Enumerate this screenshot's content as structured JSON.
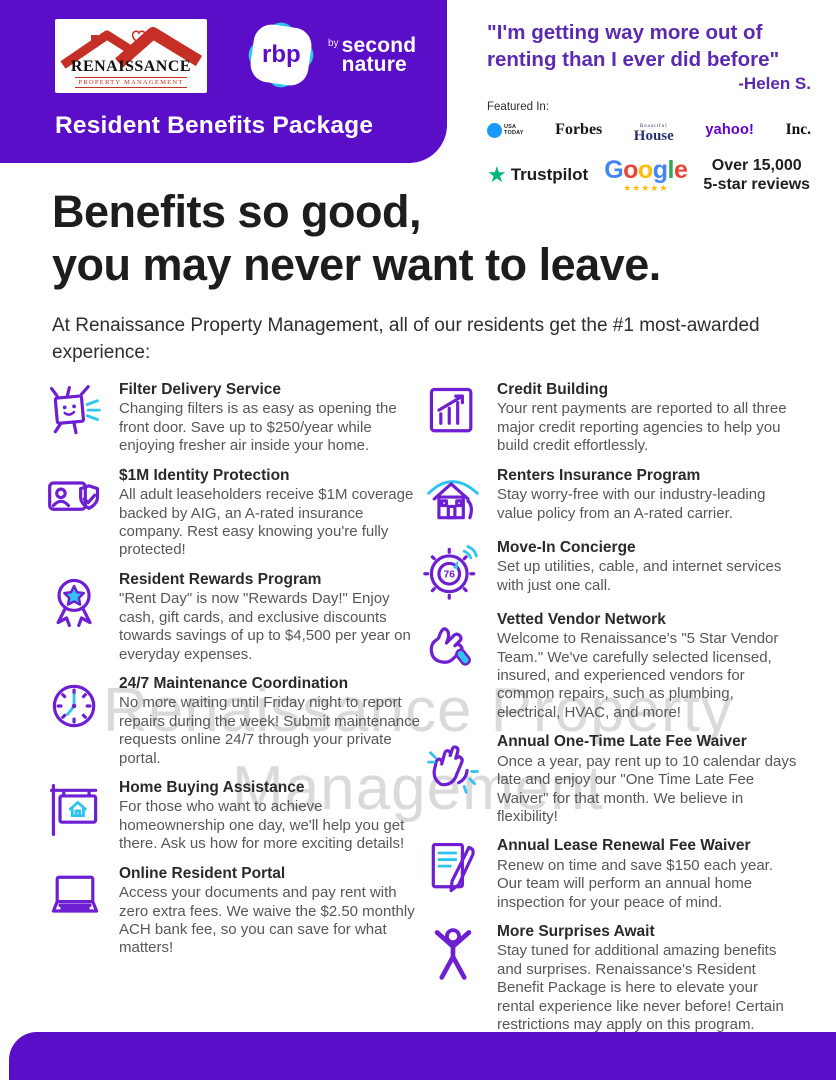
{
  "colors": {
    "brand_purple": "#5a0ec8",
    "accent_cyan": "#2fc3f0",
    "icon_purple": "#6d1fd1",
    "quote_purple": "#5b2ab0",
    "trustpilot_green": "#00b67a",
    "yahoo_purple": "#6001d2",
    "usa_today_blue": "#1a9afd",
    "google_star_yellow": "#fbbc05"
  },
  "header": {
    "title": "Resident Benefits Package",
    "company_logo": {
      "name": "RENAISSANCE",
      "subtitle": "PROPERTY MANAGEMENT"
    },
    "rbp_logo": {
      "monogram": "rbp",
      "by": "by",
      "brand_line1": "second",
      "brand_line2": "nature"
    }
  },
  "testimonial": {
    "quote_line1": "\"I'm getting way more out of",
    "quote_line2": "renting than I ever did before\"",
    "attribution": "-Helen S."
  },
  "featured": {
    "label": "Featured In:",
    "usa_today": {
      "line1": "USA",
      "line2": "TODAY"
    },
    "forbes": "Forbes",
    "house_beautiful": {
      "small": "Beautiful",
      "big": "House"
    },
    "yahoo": "yahoo!",
    "inc": "Inc."
  },
  "reviews": {
    "trustpilot_star": "★",
    "trustpilot": "Trustpilot",
    "google_letters": [
      {
        "ch": "G",
        "color": "#4285F4"
      },
      {
        "ch": "o",
        "color": "#EA4335"
      },
      {
        "ch": "o",
        "color": "#FBBC05"
      },
      {
        "ch": "g",
        "color": "#4285F4"
      },
      {
        "ch": "l",
        "color": "#34A853"
      },
      {
        "ch": "e",
        "color": "#EA4335"
      }
    ],
    "google_stars": "★★★★★",
    "summary_line1": "Over 15,000",
    "summary_line2": "5-star reviews"
  },
  "hero": {
    "headline_line1": "Benefits so good,",
    "headline_line2": "you may never want to leave.",
    "subtext": "At Renaissance Property Management, all of our residents get the #1 most-awarded experience:"
  },
  "benefits": {
    "left": [
      {
        "icon": "filter-delivery",
        "title": "Filter Delivery Service",
        "description": "Changing filters is as easy as opening the front door. Save up to $250/year while enjoying fresher air inside your home."
      },
      {
        "icon": "identity-protection",
        "title": "$1M Identity Protection",
        "description": "All adult leaseholders receive $1M coverage backed by AIG, an A-rated insurance company. Rest easy knowing you're fully protected!"
      },
      {
        "icon": "resident-rewards",
        "title": "Resident Rewards Program",
        "description": "\"Rent Day\" is now \"Rewards Day!\" Enjoy cash, gift cards, and exclusive discounts towards savings of up to $4,500 per year on everyday expenses."
      },
      {
        "icon": "maintenance-clock",
        "title": "24/7 Maintenance Coordination",
        "description": "No more waiting until Friday night to report repairs during the week! Submit maintenance requests online 24/7 through your private portal."
      },
      {
        "icon": "home-buying",
        "title": "Home Buying Assistance",
        "description": "For those who want to achieve homeownership one day, we'll help you get there. Ask us how for more exciting details!"
      },
      {
        "icon": "resident-portal",
        "title": "Online Resident Portal",
        "description": "Access your documents and pay rent with zero extra fees. We waive the $2.50 monthly ACH bank fee, so you can save for what matters!"
      }
    ],
    "right": [
      {
        "icon": "credit-building",
        "title": "Credit Building",
        "description": "Your rent payments are reported to all three major credit reporting agencies to help you build credit effortlessly."
      },
      {
        "icon": "renters-insurance",
        "title": "Renters Insurance Program",
        "description": "Stay worry-free with our industry-leading value policy from an A-rated carrier."
      },
      {
        "icon": "move-in-concierge",
        "title": "Move-In Concierge",
        "icon_text": "76",
        "description": "Set up utilities, cable, and internet services with just one call."
      },
      {
        "icon": "vetted-vendor",
        "title": "Vetted Vendor Network",
        "description": "Welcome to Renaissance's \"5 Star Vendor Team.\" We've carefully selected licensed, insured, and experienced vendors for common repairs, such as plumbing, electrical, HVAC, and more!"
      },
      {
        "icon": "late-fee-waiver",
        "title": "Annual One-Time Late Fee Waiver",
        "description": "Once a year, pay rent up to 10 calendar days late and enjoy our \"One Time Late Fee Waiver\" for that month. We believe in flexibility!"
      },
      {
        "icon": "lease-renewal",
        "title": "Annual Lease Renewal Fee Waiver",
        "description": "Renew on time and save $150 each year. Our team will perform an annual home inspection for your peace of mind."
      },
      {
        "icon": "more-surprises",
        "title": "More Surprises Await",
        "description": "Stay tuned for additional amazing benefits and surprises. Renaissance's Resident Benefit Package is here to elevate your rental experience like never before! Certain restrictions may apply on this program."
      }
    ]
  },
  "watermark": {
    "line1": "Renaissance Property",
    "line2": "Management"
  }
}
